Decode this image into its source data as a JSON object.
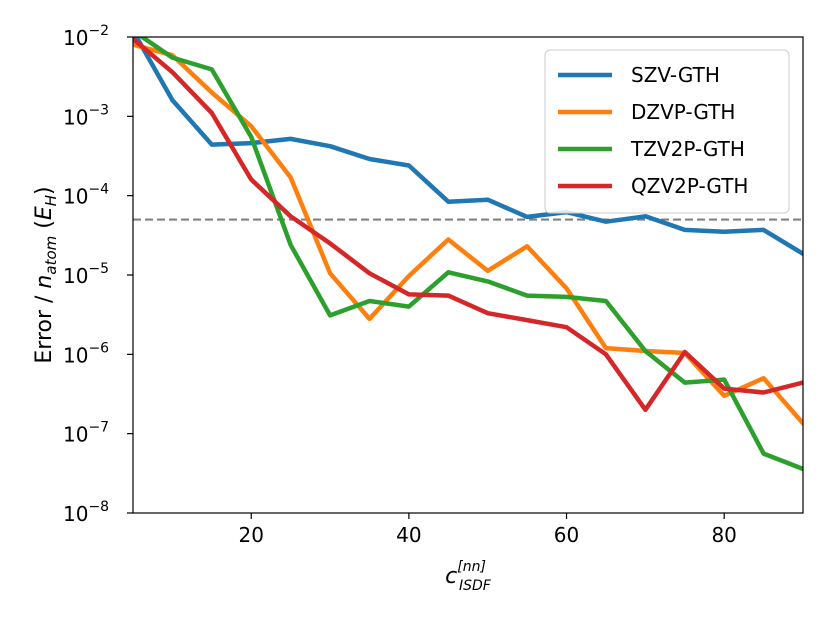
{
  "chart_data": {
    "type": "line",
    "yscale": "log",
    "xlim": [
      5,
      90
    ],
    "ylim_exp": [
      -8,
      -2
    ],
    "x_ticks": [
      20,
      40,
      60,
      80
    ],
    "x_tick_labels": [
      "20",
      "40",
      "60",
      "80"
    ],
    "y_tick_exps": [
      -8,
      -7,
      -6,
      -5,
      -4,
      -3,
      -2
    ],
    "y_tick_labels": [
      "-8",
      "-7",
      "-6",
      "-5",
      "-4",
      "-3",
      "-2"
    ],
    "y_tick_base": "10",
    "xlabel": {
      "base": "c",
      "sup": "[nn]",
      "sub": "ISDF"
    },
    "ylabel": {
      "pre": "Error / ",
      "n": "n",
      "n_sub": "atom",
      "mid": " (",
      "e": "E",
      "e_sub": "H",
      "post": ")"
    },
    "reference_line": {
      "value": 5e-05,
      "style": "dashed",
      "color": "#808080"
    },
    "legend_position": "upper right",
    "x": [
      5,
      10,
      15,
      20,
      25,
      30,
      35,
      40,
      45,
      50,
      55,
      60,
      65,
      70,
      75,
      80,
      85,
      90
    ],
    "series": [
      {
        "name": "SZV-GTH",
        "color": "#1f77b4",
        "values": [
          0.012,
          0.0016,
          0.00044,
          0.00046,
          0.00052,
          0.00042,
          0.00029,
          0.00024,
          8.4e-05,
          8.9e-05,
          5.4e-05,
          6.2e-05,
          4.7e-05,
          5.5e-05,
          3.7e-05,
          3.5e-05,
          3.7e-05,
          1.85e-05
        ]
      },
      {
        "name": "DZVP-GTH",
        "color": "#ff7f0e",
        "values": [
          0.008,
          0.0059,
          0.002,
          0.00075,
          0.00017,
          1.05e-05,
          2.8e-06,
          9.7e-06,
          2.8e-05,
          1.13e-05,
          2.3e-05,
          6.8e-06,
          1.2e-06,
          1.1e-06,
          1.04e-06,
          3e-07,
          5e-07,
          1.35e-07
        ]
      },
      {
        "name": "TZV2P-GTH",
        "color": "#2ca02c",
        "values": [
          0.012,
          0.0055,
          0.0039,
          0.00055,
          2.4e-05,
          3.1e-06,
          4.7e-06,
          4e-06,
          1.08e-05,
          8.3e-06,
          5.5e-06,
          5.3e-06,
          4.7e-06,
          1.1e-06,
          4.4e-07,
          4.8e-07,
          5.6e-08,
          3.6e-08
        ]
      },
      {
        "name": "QZV2P-GTH",
        "color": "#d62728",
        "values": [
          0.0095,
          0.0036,
          0.0011,
          0.00016,
          5.5e-05,
          2.5e-05,
          1.05e-05,
          5.7e-06,
          5.5e-06,
          3.3e-06,
          2.7e-06,
          2.2e-06,
          1e-06,
          2e-07,
          1.07e-06,
          3.7e-07,
          3.3e-07,
          4.4e-07
        ]
      }
    ]
  }
}
